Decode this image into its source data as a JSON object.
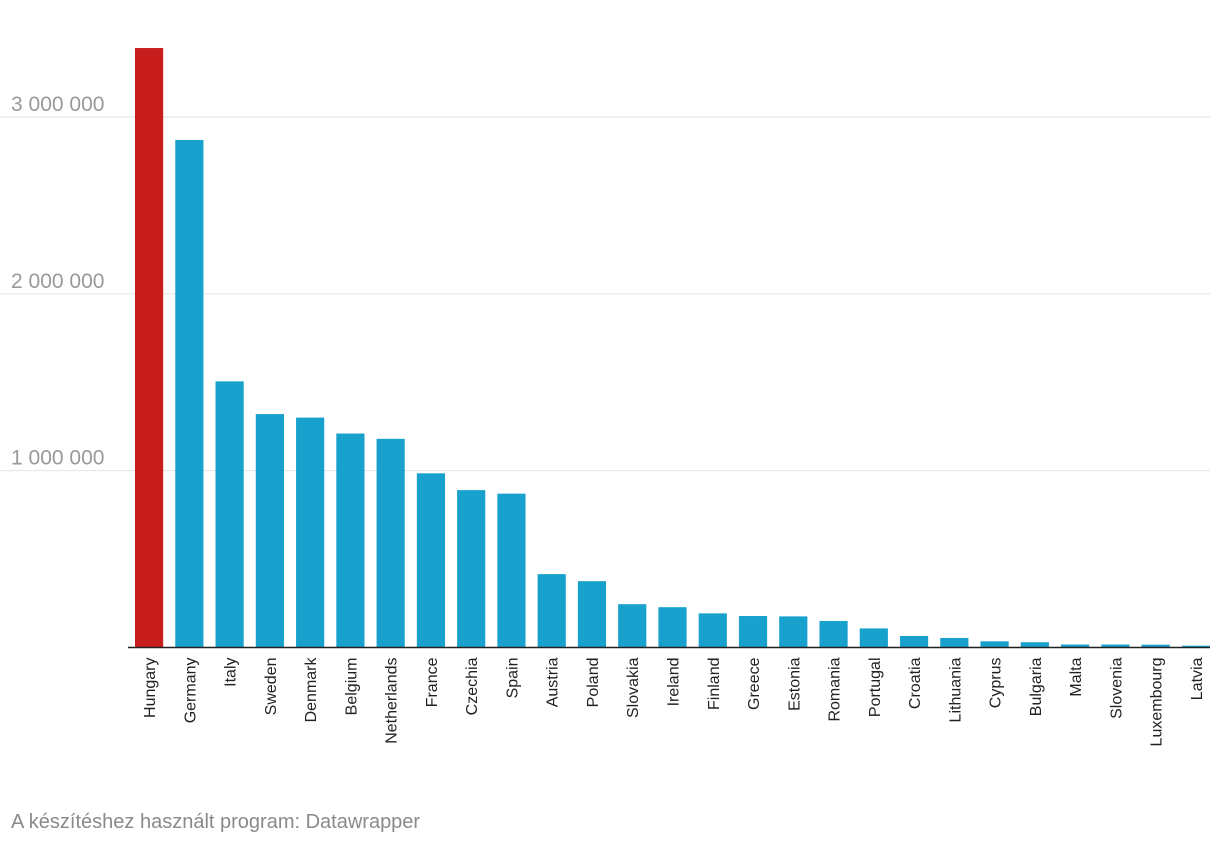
{
  "chart_data": {
    "type": "bar",
    "title": "",
    "xlabel": "",
    "ylabel": "",
    "ylim": [
      0,
      3400000
    ],
    "yticks": [
      1000000,
      2000000,
      3000000
    ],
    "ytick_labels": [
      "1 000 000",
      "2 000 000",
      "3 000 000"
    ],
    "grid": true,
    "categories": [
      "Hungary",
      "Germany",
      "Italy",
      "Sweden",
      "Denmark",
      "Belgium",
      "Netherlands",
      "France",
      "Czechia",
      "Spain",
      "Austria",
      "Poland",
      "Slovakia",
      "Ireland",
      "Finland",
      "Greece",
      "Estonia",
      "Romania",
      "Portugal",
      "Croatia",
      "Lithuania",
      "Cyprus",
      "Bulgaria",
      "Malta",
      "Slovenia",
      "Luxembourg",
      "Latvia"
    ],
    "values": [
      3390000,
      2870000,
      1505000,
      1320000,
      1300000,
      1210000,
      1180000,
      985000,
      890000,
      870000,
      415000,
      375000,
      245000,
      228000,
      193000,
      178000,
      176000,
      150000,
      108000,
      65000,
      54000,
      35000,
      30000,
      17000,
      17000,
      16000,
      10000
    ],
    "highlight": [
      "Hungary"
    ],
    "colors": {
      "default": "#18a1cd",
      "highlight": "#c71e1d"
    }
  },
  "footer": {
    "credit": "A készítéshez használt program: Datawrapper"
  }
}
